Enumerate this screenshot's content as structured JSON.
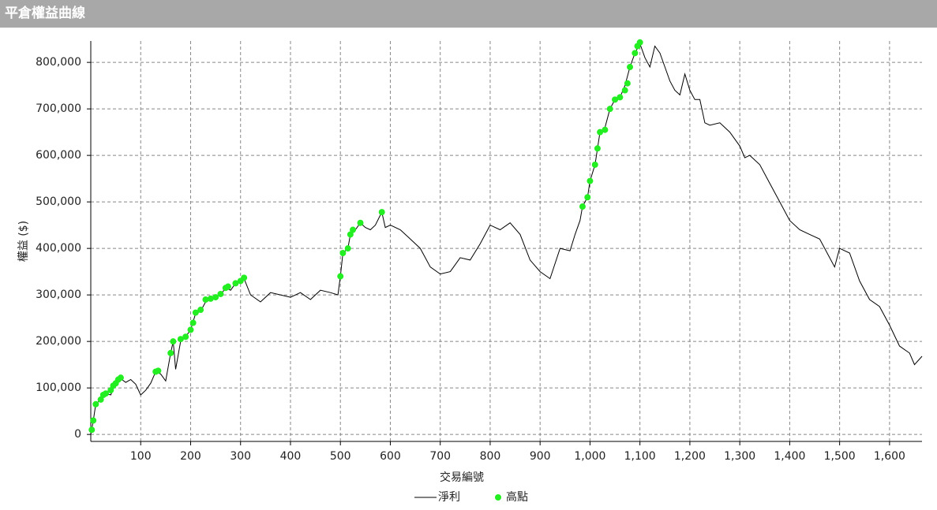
{
  "chart_data": {
    "type": "line",
    "title": "平倉權益曲線",
    "x_label": "交易編號",
    "y_label": "權益 ($)",
    "xlim": [
      0,
      1665
    ],
    "ylim": [
      -15000,
      846000
    ],
    "grid": true,
    "legend": "bottom",
    "xticks": [
      100,
      200,
      300,
      400,
      500,
      600,
      700,
      800,
      900,
      {
        "value": 1000,
        "label": "1,000"
      },
      {
        "value": 1100,
        "label": "1,100"
      },
      {
        "value": 1200,
        "label": "1,200"
      },
      {
        "value": 1300,
        "label": "1,300"
      },
      {
        "value": 1400,
        "label": "1,400"
      },
      {
        "value": 1500,
        "label": "1,500"
      },
      {
        "value": 1600,
        "label": "1,600"
      }
    ],
    "yticks": [
      0,
      {
        "value": 100000,
        "label": "100,000"
      },
      {
        "value": 200000,
        "label": "200,000"
      },
      {
        "value": 300000,
        "label": "300,000"
      },
      {
        "value": 400000,
        "label": "400,000"
      },
      {
        "value": 500000,
        "label": "500,000"
      },
      {
        "value": 600000,
        "label": "600,000"
      },
      {
        "value": 700000,
        "label": "700,000"
      },
      {
        "value": 800000,
        "label": "800,000"
      }
    ],
    "series": [
      {
        "name": "淨利",
        "type": "line",
        "color": "#000000",
        "x": [
          0,
          5,
          10,
          20,
          30,
          40,
          50,
          60,
          70,
          80,
          90,
          100,
          110,
          120,
          130,
          140,
          150,
          160,
          165,
          170,
          180,
          190,
          200,
          210,
          220,
          230,
          240,
          250,
          260,
          270,
          280,
          290,
          300,
          307,
          320,
          340,
          360,
          380,
          400,
          420,
          440,
          460,
          480,
          495,
          500,
          505,
          515,
          520,
          530,
          540,
          550,
          560,
          570,
          583,
          590,
          600,
          620,
          640,
          660,
          680,
          700,
          720,
          740,
          760,
          780,
          800,
          820,
          840,
          860,
          880,
          900,
          920,
          940,
          960,
          970,
          980,
          985,
          995,
          1000,
          1010,
          1015,
          1020,
          1030,
          1040,
          1050,
          1060,
          1070,
          1080,
          1090,
          1100,
          1110,
          1120,
          1130,
          1140,
          1150,
          1160,
          1170,
          1180,
          1190,
          1200,
          1210,
          1220,
          1230,
          1240,
          1260,
          1280,
          1300,
          1310,
          1320,
          1340,
          1360,
          1380,
          1400,
          1420,
          1440,
          1460,
          1480,
          1490,
          1500,
          1520,
          1540,
          1560,
          1580,
          1600,
          1620,
          1640,
          1650,
          1665
        ],
        "values": [
          0,
          30000,
          65000,
          75000,
          88000,
          85000,
          110000,
          120000,
          112000,
          118000,
          108000,
          85000,
          95000,
          110000,
          135000,
          130000,
          115000,
          175000,
          200000,
          140000,
          200000,
          210000,
          225000,
          260000,
          265000,
          285000,
          290000,
          295000,
          300000,
          315000,
          310000,
          325000,
          330000,
          335000,
          300000,
          285000,
          305000,
          300000,
          295000,
          305000,
          290000,
          310000,
          305000,
          300000,
          340000,
          390000,
          400000,
          430000,
          440000,
          455000,
          445000,
          440000,
          450000,
          478000,
          445000,
          450000,
          440000,
          420000,
          400000,
          360000,
          345000,
          350000,
          380000,
          375000,
          410000,
          450000,
          440000,
          455000,
          430000,
          375000,
          350000,
          335000,
          400000,
          395000,
          430000,
          460000,
          490000,
          510000,
          545000,
          580000,
          615000,
          650000,
          660000,
          700000,
          720000,
          725000,
          750000,
          790000,
          820000,
          840000,
          810000,
          790000,
          835000,
          820000,
          790000,
          760000,
          740000,
          730000,
          775000,
          740000,
          720000,
          720000,
          670000,
          665000,
          670000,
          650000,
          620000,
          595000,
          600000,
          580000,
          540000,
          500000,
          460000,
          440000,
          430000,
          420000,
          380000,
          360000,
          400000,
          390000,
          330000,
          290000,
          275000,
          235000,
          190000,
          175000,
          150000,
          168000
        ]
      },
      {
        "name": "高點",
        "type": "scatter",
        "color": "#22ee22",
        "x": [
          2,
          5,
          10,
          20,
          25,
          30,
          40,
          45,
          50,
          55,
          60,
          130,
          135,
          160,
          165,
          180,
          190,
          200,
          205,
          210,
          220,
          230,
          240,
          250,
          260,
          270,
          275,
          290,
          300,
          307,
          500,
          505,
          515,
          520,
          525,
          540,
          583,
          985,
          995,
          1000,
          1010,
          1015,
          1020,
          1030,
          1040,
          1050,
          1060,
          1070,
          1075,
          1080,
          1090,
          1095,
          1100
        ],
        "values": [
          10000,
          30000,
          65000,
          75000,
          85000,
          88000,
          95000,
          105000,
          110000,
          118000,
          122000,
          135000,
          137000,
          175000,
          200000,
          205000,
          210000,
          225000,
          240000,
          262000,
          268000,
          290000,
          292000,
          295000,
          302000,
          315000,
          318000,
          325000,
          330000,
          337000,
          340000,
          390000,
          400000,
          430000,
          440000,
          455000,
          478000,
          490000,
          510000,
          545000,
          580000,
          615000,
          650000,
          655000,
          700000,
          720000,
          725000,
          740000,
          755000,
          790000,
          820000,
          835000,
          843000
        ]
      }
    ]
  }
}
